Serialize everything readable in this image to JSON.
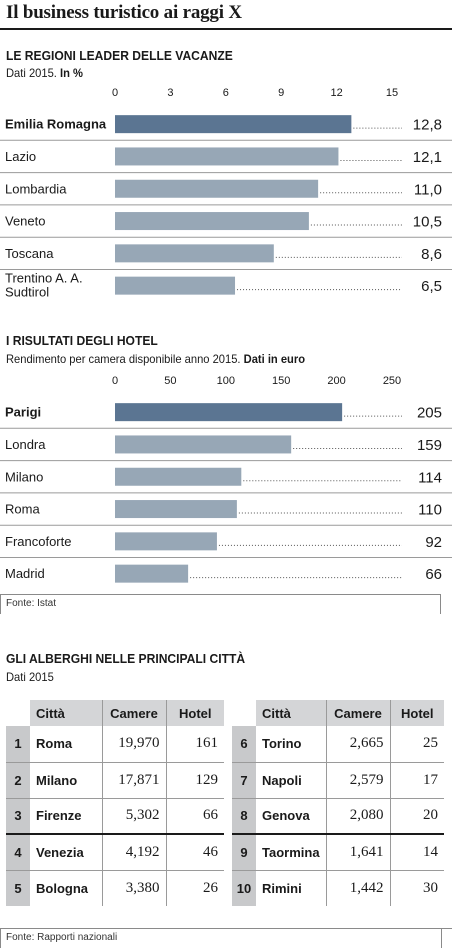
{
  "title": "Il business turistico ai raggi X",
  "chart_data": [
    {
      "type": "bar",
      "orientation": "horizontal",
      "title": "LE REGIONI LEADER DELLE VACANZE",
      "subtitle_plain": "Dati 2015.",
      "subtitle_bold": "In %",
      "categories": [
        "Emilia Romagna",
        "Lazio",
        "Lombardia",
        "Veneto",
        "Toscana",
        "Trentino A. A. Sudtirol"
      ],
      "category_lines": [
        [
          "Emilia Romagna"
        ],
        [
          "Lazio"
        ],
        [
          "Lombardia"
        ],
        [
          "Veneto"
        ],
        [
          "Toscana"
        ],
        [
          "Trentino A. A.",
          "Sudtirol"
        ]
      ],
      "values": [
        12.8,
        12.1,
        11.0,
        10.5,
        8.6,
        6.5
      ],
      "value_labels": [
        "12,8",
        "12,1",
        "11,0",
        "10,5",
        "8,6",
        "6,5"
      ],
      "ticks": [
        0,
        3,
        6,
        9,
        12,
        15
      ],
      "xlim": [
        0,
        15
      ],
      "highlight_index": 0
    },
    {
      "type": "bar",
      "orientation": "horizontal",
      "title": "I RISULTATI DEGLI HOTEL",
      "subtitle_plain": "Rendimento per camera disponibile anno 2015.",
      "subtitle_bold": "Dati in euro",
      "categories": [
        "Parigi",
        "Londra",
        "Milano",
        "Roma",
        "Francoforte",
        "Madrid"
      ],
      "category_lines": [
        [
          "Parigi"
        ],
        [
          "Londra"
        ],
        [
          "Milano"
        ],
        [
          "Roma"
        ],
        [
          "Francoforte"
        ],
        [
          "Madrid"
        ]
      ],
      "values": [
        205,
        159,
        114,
        110,
        92,
        66
      ],
      "value_labels": [
        "205",
        "159",
        "114",
        "110",
        "92",
        "66"
      ],
      "ticks": [
        0,
        50,
        100,
        150,
        200,
        250
      ],
      "xlim": [
        0,
        250
      ],
      "highlight_index": 0,
      "source": "Fonte: Istat"
    },
    {
      "type": "table",
      "title": "GLI ALBERGHI NELLE PRINCIPALI CITTÀ",
      "subtitle": "Dati 2015",
      "columns": [
        "Città",
        "Camere",
        "Hotel"
      ],
      "rows": [
        {
          "rank": "1",
          "city": "Roma",
          "camere": "19,970",
          "hotel": "161"
        },
        {
          "rank": "2",
          "city": "Milano",
          "camere": "17,871",
          "hotel": "129"
        },
        {
          "rank": "3",
          "city": "Firenze",
          "camere": "5,302",
          "hotel": "66"
        },
        {
          "rank": "4",
          "city": "Venezia",
          "camere": "4,192",
          "hotel": "46"
        },
        {
          "rank": "5",
          "city": "Bologna",
          "camere": "3,380",
          "hotel": "26"
        },
        {
          "rank": "6",
          "city": "Torino",
          "camere": "2,665",
          "hotel": "25"
        },
        {
          "rank": "7",
          "city": "Napoli",
          "camere": "2,579",
          "hotel": "17"
        },
        {
          "rank": "8",
          "city": "Genova",
          "camere": "2,080",
          "hotel": "20"
        },
        {
          "rank": "9",
          "city": "Taormina",
          "camere": "1,641",
          "hotel": "14"
        },
        {
          "rank": "10",
          "city": "Rimini",
          "camere": "1,442",
          "hotel": "30"
        }
      ],
      "source": "Fonte: Rapporti nazionali"
    }
  ],
  "colors": {
    "highlight_bar": "#5b7592",
    "bar": "#97a7b6",
    "rule": "#1a1a1a",
    "table_header": "#d4d5d7"
  }
}
